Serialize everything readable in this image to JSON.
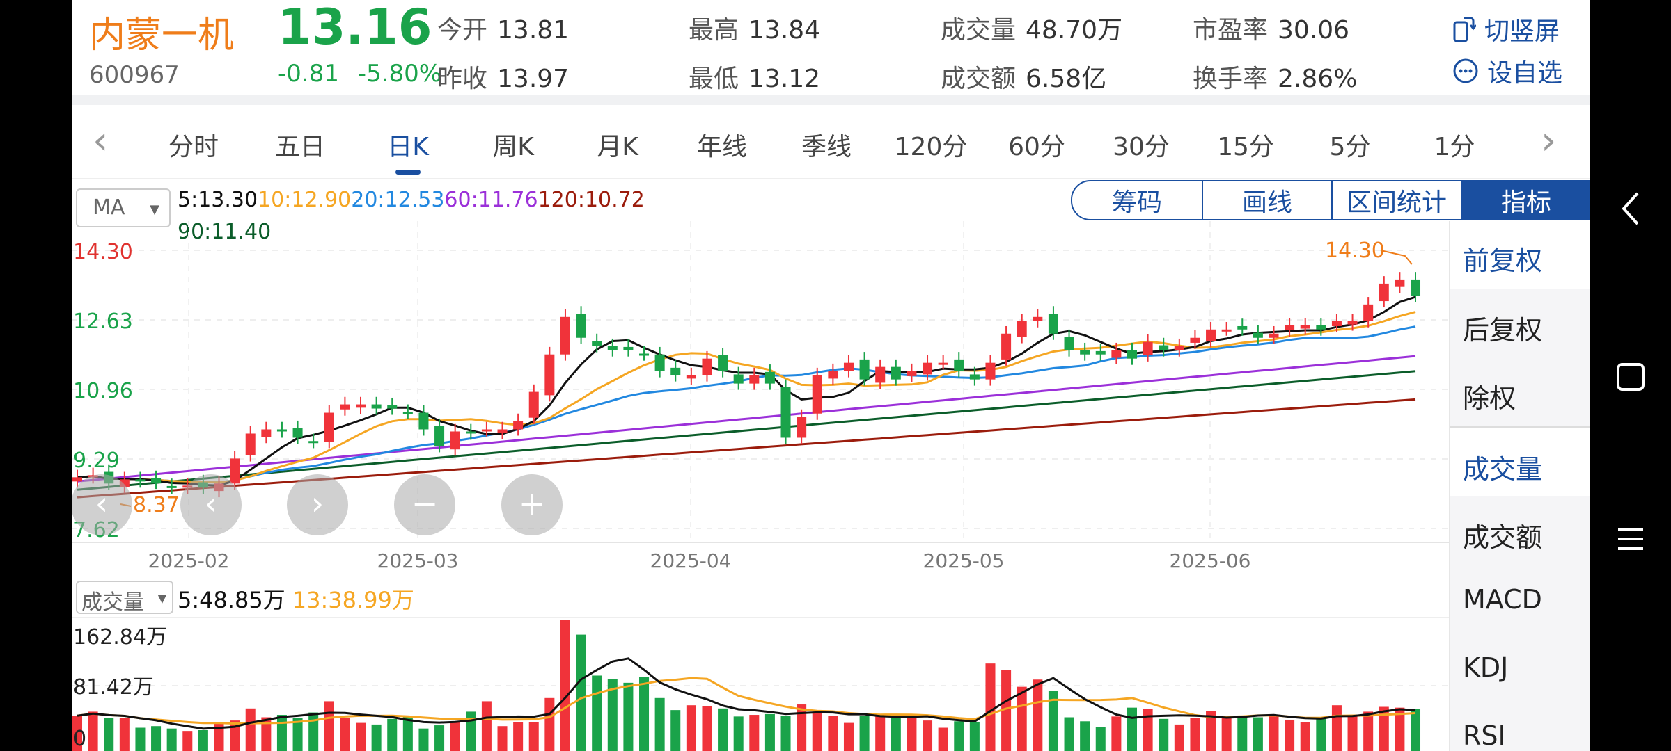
{
  "quote": {
    "name": "内蒙一机",
    "code": "600967",
    "price": "13.16",
    "change": "-0.81",
    "change_pct": "-5.80%",
    "open_label": "今开",
    "open": "13.81",
    "prev_close_label": "昨收",
    "prev_close": "13.97",
    "high_label": "最高",
    "high": "13.84",
    "low_label": "最低",
    "low": "13.12",
    "volume_label": "成交量",
    "volume": "48.70万",
    "turnover_label": "成交额",
    "turnover": "6.58亿",
    "pe_label": "市盈率",
    "pe": "30.06",
    "turnover_rate_label": "换手率",
    "turnover_rate": "2.86%",
    "switch_portrait": "切竖屏",
    "add_watchlist": "设自选"
  },
  "tabs": [
    "分时",
    "五日",
    "日K",
    "周K",
    "月K",
    "年线",
    "季线",
    "120分",
    "60分",
    "30分",
    "15分",
    "5分",
    "1分"
  ],
  "active_tab": "日K",
  "ma": {
    "select_label": "MA",
    "legend": [
      {
        "label": "5:13.30",
        "color": "#111111"
      },
      {
        "label": "10:12.90",
        "color": "#f5a623"
      },
      {
        "label": "20:12.53",
        "color": "#2288e0"
      },
      {
        "label": "60:11.76",
        "color": "#9b30d9"
      },
      {
        "label": "120:10.72",
        "color": "#9b1c0c"
      }
    ],
    "legend_line2": {
      "label": "90:11.40",
      "color": "#0b5d2a"
    }
  },
  "tool_buttons": [
    "筹码",
    "画线",
    "区间统计",
    "指标"
  ],
  "side_panel": {
    "group1": [
      "前复权",
      "后复权",
      "除权"
    ],
    "group2": [
      "成交量",
      "成交额",
      "MACD",
      "KDJ",
      "RSI"
    ]
  },
  "price_axis": {
    "top": "14.30",
    "l2": "12.63",
    "l3": "10.96",
    "l4": "9.29",
    "bottom": "7.62",
    "max_marker": "14.30",
    "min_marker": "8.37"
  },
  "date_axis": [
    "2025-02",
    "2025-03",
    "2025-04",
    "2025-05",
    "2025-06"
  ],
  "volume": {
    "select_label": "成交量",
    "legend_ma5": "5:48.85万",
    "legend_ma10": "13:38.99万",
    "axis_top": "162.84万",
    "axis_mid": "81.42万",
    "axis_zero": "0"
  },
  "colors": {
    "up": "#f0333a",
    "down": "#1aa34a",
    "accent": "#1a4fa0",
    "orange": "#ef7d1a"
  },
  "chart_data": {
    "type": "candlestick",
    "ohlc_approx_close": [
      8.85,
      8.9,
      8.7,
      8.8,
      8.75,
      8.72,
      8.6,
      8.65,
      8.6,
      8.7,
      9.3,
      9.9,
      10.0,
      9.95,
      9.8,
      9.7,
      10.4,
      10.6,
      10.6,
      10.5,
      10.5,
      10.4,
      10.0,
      9.6,
      9.95,
      9.9,
      10.0,
      10.0,
      10.2,
      10.9,
      11.8,
      12.7,
      12.2,
      12.0,
      11.9,
      11.9,
      11.8,
      11.4,
      11.3,
      11.3,
      11.7,
      11.4,
      11.1,
      11.3,
      11.1,
      9.8,
      10.3,
      11.3,
      11.4,
      11.6,
      11.2,
      11.5,
      11.2,
      11.4,
      11.6,
      11.6,
      11.4,
      11.2,
      11.6,
      12.3,
      12.6,
      12.7,
      12.3,
      11.9,
      11.8,
      11.8,
      11.9,
      11.7,
      12.1,
      11.9,
      12.0,
      12.2,
      12.4,
      12.4,
      12.4,
      12.2,
      12.3,
      12.5,
      12.5,
      12.4,
      12.6,
      12.6,
      13.0,
      13.5,
      13.6,
      13.2
    ],
    "volume_approx_wan": [
      44,
      49,
      41,
      41,
      29,
      31,
      28,
      25,
      26,
      34,
      38,
      53,
      42,
      45,
      41,
      48,
      62,
      41,
      35,
      33,
      40,
      44,
      28,
      32,
      37,
      49,
      62,
      31,
      36,
      36,
      66,
      163,
      145,
      94,
      90,
      85,
      92,
      66,
      51,
      57,
      56,
      53,
      43,
      45,
      46,
      44,
      58,
      48,
      44,
      35,
      44,
      46,
      44,
      44,
      38,
      29,
      37,
      36,
      109,
      101,
      80,
      89,
      75,
      42,
      37,
      30,
      43,
      54,
      52,
      40,
      33,
      41,
      50,
      44,
      44,
      42,
      44,
      39,
      36,
      41,
      57,
      45,
      49,
      55,
      54,
      52
    ]
  }
}
